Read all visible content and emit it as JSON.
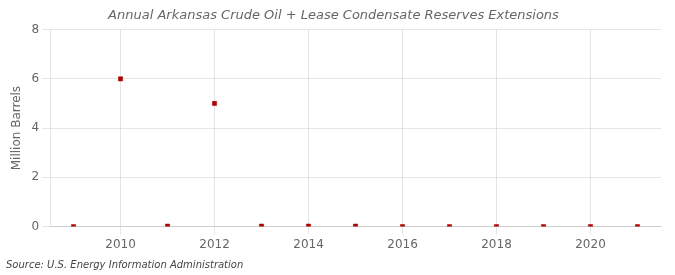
{
  "chart_data": {
    "type": "scatter",
    "title": "Annual Arkansas Crude Oil + Lease Condensate Reserves Extensions",
    "ylabel": "Million Barrels",
    "source": "Source: U.S. Energy Information Administration",
    "x": [
      2009,
      2010,
      2011,
      2012,
      2013,
      2014,
      2015,
      2016,
      2017,
      2018,
      2019,
      2020,
      2021
    ],
    "values": [
      0.0,
      6.0,
      0.02,
      5.0,
      0.02,
      0.02,
      0.02,
      0.0,
      0.0,
      0.0,
      0.0,
      0.0,
      0.0
    ],
    "color": "#aa0000",
    "marker": "square",
    "xlim": [
      2008.5,
      2021.5
    ],
    "xticks": [
      2010,
      2012,
      2014,
      2016,
      2018,
      2020
    ],
    "ylim": [
      0,
      8
    ],
    "yticks": [
      0,
      2,
      4,
      6,
      8
    ],
    "grid": true
  }
}
